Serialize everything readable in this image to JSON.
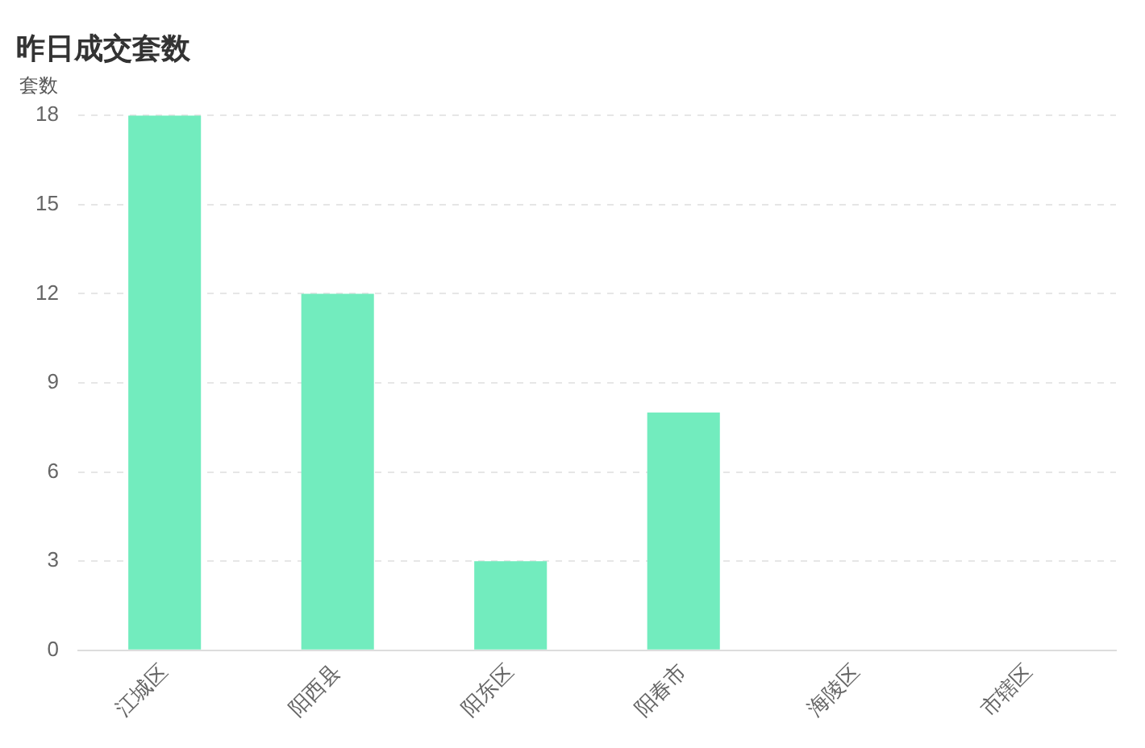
{
  "chart_data": {
    "type": "bar",
    "title": "昨日成交套数",
    "ylabel": "套数",
    "categories": [
      "江城区",
      "阳西县",
      "阳东区",
      "阳春市",
      "海陵区",
      "市辖区"
    ],
    "values": [
      18,
      12,
      3,
      8,
      0,
      0
    ],
    "color": "#72ecbe",
    "ylim": [
      0,
      18
    ],
    "yticks": [
      0,
      3,
      6,
      9,
      12,
      15,
      18
    ],
    "grid": "y"
  }
}
